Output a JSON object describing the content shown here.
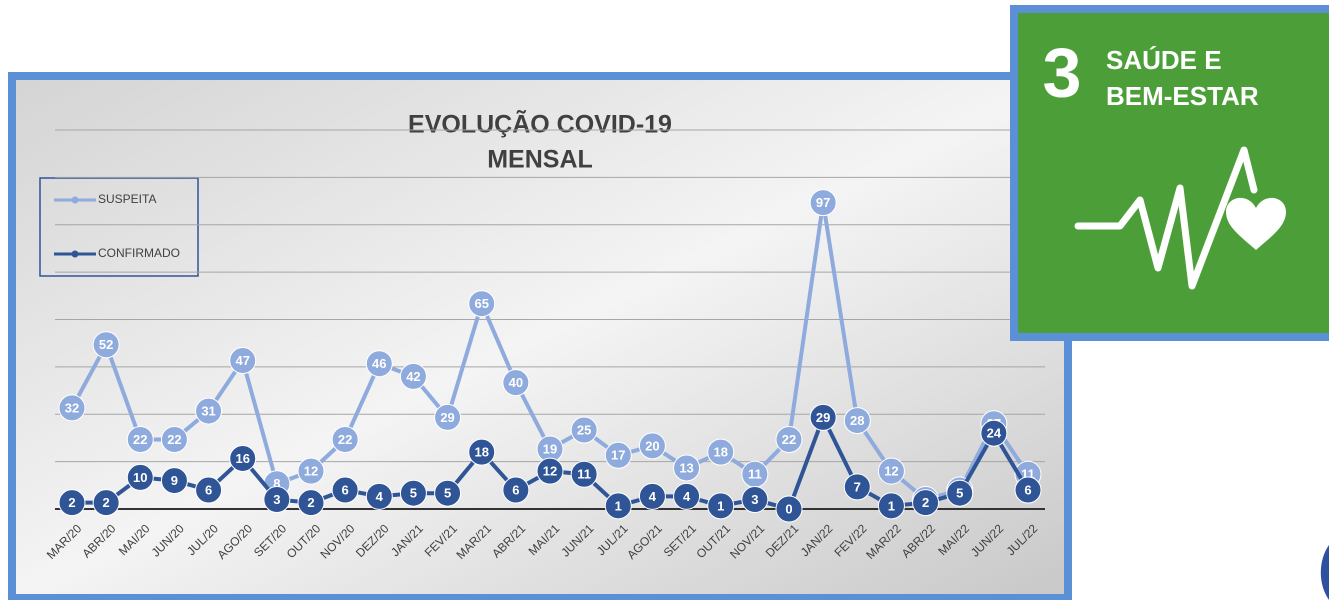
{
  "chart_data": {
    "type": "line",
    "title": "EVOLUÇÃO COVID-19",
    "subtitle": "MENSAL",
    "categories": [
      "MAR/20",
      "ABR/20",
      "MAI/20",
      "JUN/20",
      "JUL/20",
      "AGO/20",
      "SET/20",
      "OUT/20",
      "NOV/20",
      "DEZ/20",
      "JAN/21",
      "FEV/21",
      "MAR/21",
      "ABR/21",
      "MAI/21",
      "JUN/21",
      "JUL/21",
      "AGO/21",
      "SET/21",
      "OUT/21",
      "NOV/21",
      "DEZ/21",
      "JAN/22",
      "FEV/22",
      "MAR/22",
      "ABR/22",
      "MAI/22",
      "JUN/22",
      "JUL/22"
    ],
    "series": [
      {
        "name": "SUSPEITA",
        "color": "#8faadc",
        "values": [
          32,
          52,
          22,
          22,
          31,
          47,
          8,
          12,
          22,
          46,
          42,
          29,
          65,
          40,
          19,
          25,
          17,
          20,
          13,
          18,
          11,
          22,
          97,
          28,
          12,
          3,
          6,
          27,
          11
        ]
      },
      {
        "name": "CONFIRMADO",
        "color": "#2f5597",
        "values": [
          2,
          2,
          10,
          9,
          6,
          16,
          3,
          2,
          6,
          4,
          5,
          5,
          18,
          6,
          12,
          11,
          1,
          4,
          4,
          1,
          3,
          0,
          29,
          7,
          1,
          2,
          5,
          24,
          6
        ]
      }
    ],
    "ylim": [
      0,
      120
    ],
    "yticks": [
      0,
      15,
      30,
      45,
      60,
      75,
      90,
      105,
      120
    ],
    "grid": true,
    "legend": "top-left"
  },
  "badge": {
    "number": "3",
    "lines": [
      "SAÚDE E",
      "BEM-ESTAR"
    ]
  }
}
